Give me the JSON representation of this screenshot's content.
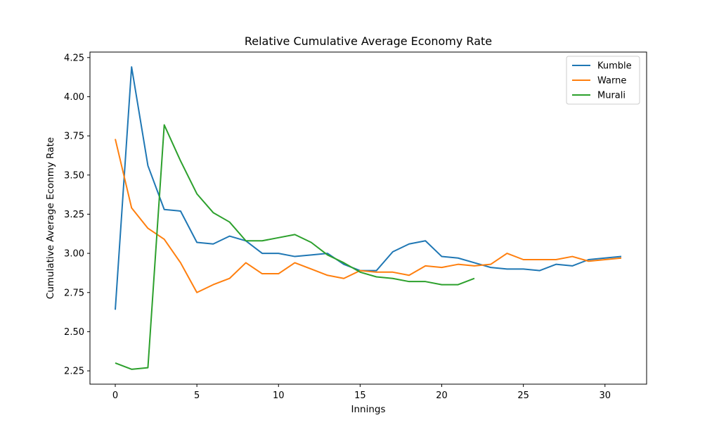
{
  "chart_data": {
    "type": "line",
    "title": "Relative Cumulative Average Economy Rate",
    "xlabel": "Innings",
    "ylabel": "Cumulative Average Econmy Rate",
    "xlim": [
      -1.55,
      32.55
    ],
    "ylim": [
      2.165,
      4.285
    ],
    "xticks": [
      0,
      5,
      10,
      15,
      20,
      25,
      30
    ],
    "xtick_labels": [
      "0",
      "5",
      "10",
      "15",
      "20",
      "25",
      "30"
    ],
    "yticks": [
      2.25,
      2.5,
      2.75,
      3.0,
      3.25,
      3.5,
      3.75,
      4.0,
      4.25
    ],
    "ytick_labels": [
      "2.25",
      "2.50",
      "2.75",
      "3.00",
      "3.25",
      "3.50",
      "3.75",
      "4.00",
      "4.25"
    ],
    "legend_position": "top-right",
    "grid": false,
    "series": [
      {
        "name": "Kumble",
        "color": "#1f77b4",
        "x": [
          0,
          1,
          2,
          3,
          4,
          5,
          6,
          7,
          8,
          9,
          10,
          11,
          12,
          13,
          14,
          15,
          16,
          17,
          18,
          19,
          20,
          21,
          22,
          23,
          24,
          25,
          26,
          27,
          28,
          29,
          30,
          31
        ],
        "values": [
          2.64,
          4.19,
          3.56,
          3.28,
          3.27,
          3.07,
          3.06,
          3.11,
          3.08,
          3.0,
          3.0,
          2.98,
          2.99,
          3.0,
          2.93,
          2.89,
          2.89,
          3.01,
          3.06,
          3.08,
          2.98,
          2.97,
          2.94,
          2.91,
          2.9,
          2.9,
          2.89,
          2.93,
          2.92,
          2.96,
          2.97,
          2.98
        ]
      },
      {
        "name": "Warne",
        "color": "#ff7f0e",
        "x": [
          0,
          1,
          2,
          3,
          4,
          5,
          6,
          7,
          8,
          9,
          10,
          11,
          12,
          13,
          14,
          15,
          16,
          17,
          18,
          19,
          20,
          21,
          22,
          23,
          24,
          25,
          26,
          27,
          28,
          29,
          30,
          31
        ],
        "values": [
          3.73,
          3.29,
          3.16,
          3.09,
          2.94,
          2.75,
          2.8,
          2.84,
          2.94,
          2.87,
          2.87,
          2.94,
          2.9,
          2.86,
          2.84,
          2.89,
          2.88,
          2.88,
          2.86,
          2.92,
          2.91,
          2.93,
          2.92,
          2.93,
          3.0,
          2.96,
          2.96,
          2.96,
          2.98,
          2.95,
          2.96,
          2.97
        ]
      },
      {
        "name": "Murali",
        "color": "#2ca02c",
        "x": [
          0,
          1,
          2,
          3,
          4,
          5,
          6,
          7,
          8,
          9,
          10,
          11,
          12,
          13,
          14,
          15,
          16,
          17,
          18,
          19,
          20,
          21,
          22
        ],
        "values": [
          2.3,
          2.26,
          2.27,
          3.82,
          3.59,
          3.38,
          3.26,
          3.2,
          3.08,
          3.08,
          3.1,
          3.12,
          3.07,
          2.99,
          2.94,
          2.88,
          2.85,
          2.84,
          2.82,
          2.82,
          2.8,
          2.8,
          2.84
        ]
      }
    ]
  }
}
